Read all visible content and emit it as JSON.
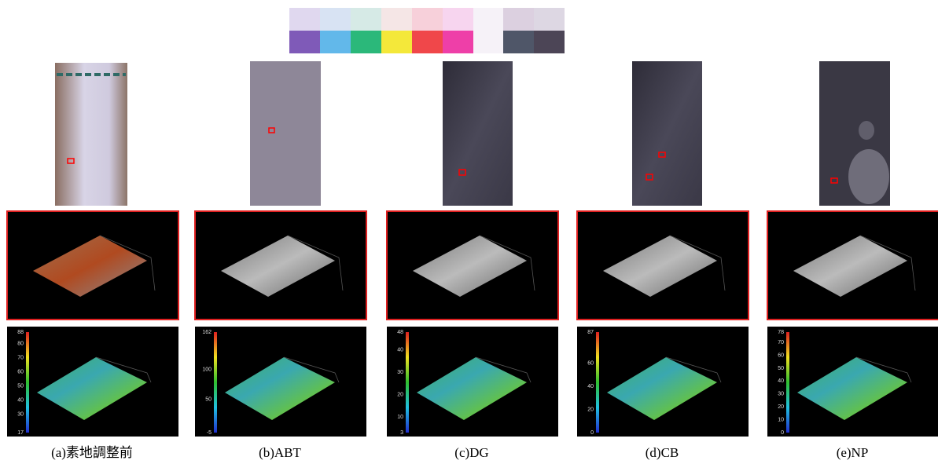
{
  "panels": [
    {
      "caption": "(a)素地調整前",
      "colorbar_ticks": [
        88,
        80,
        70,
        60,
        50,
        40,
        30,
        17
      ]
    },
    {
      "caption": "(b)ABT",
      "colorbar_ticks": [
        162,
        100,
        50,
        -5
      ]
    },
    {
      "caption": "(c)DG",
      "colorbar_ticks": [
        48,
        40,
        30,
        20,
        10,
        3
      ]
    },
    {
      "caption": "(d)CB",
      "colorbar_ticks": [
        87,
        60,
        40,
        20,
        0
      ]
    },
    {
      "caption": "(e)NP",
      "colorbar_ticks": [
        78,
        70,
        60,
        50,
        40,
        30,
        20,
        10,
        0
      ]
    }
  ]
}
